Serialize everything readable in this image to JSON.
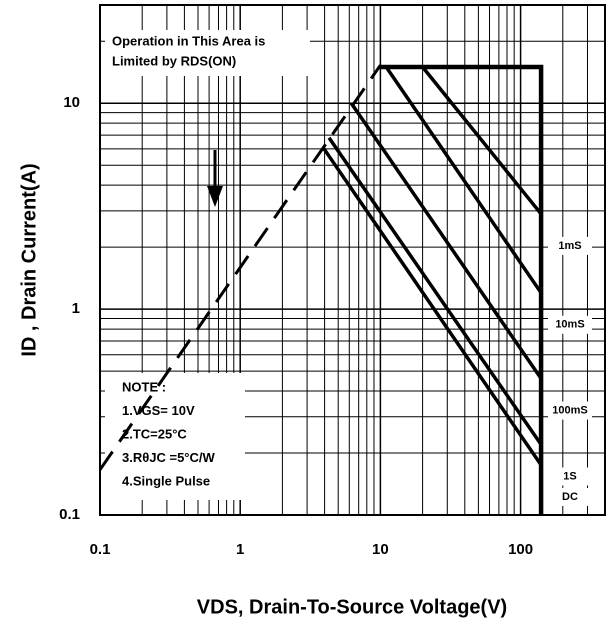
{
  "chart_data": {
    "type": "line",
    "xlabel": "VDS, Drain-To-Source Voltage(V)",
    "ylabel": "ID , Drain Current(A)",
    "log_x": true,
    "log_y": true,
    "grid": true,
    "minor_grid": true,
    "color": "#000000",
    "xlim": [
      0.1,
      400
    ],
    "ylim": [
      0.1,
      30
    ],
    "xticks": [
      0.1,
      1,
      10,
      100
    ],
    "yticks": [
      0.1,
      1,
      10
    ],
    "series": [
      {
        "name": "1mS",
        "x": [
          20,
          140
        ],
        "values": [
          15,
          2.9
        ]
      },
      {
        "name": "10mS",
        "x": [
          11,
          140
        ],
        "values": [
          15,
          1.2
        ]
      },
      {
        "name": "100mS",
        "x": [
          6.2,
          140
        ],
        "values": [
          10,
          0.46
        ]
      },
      {
        "name": "1S",
        "x": [
          4.3,
          140
        ],
        "values": [
          6.8,
          0.22
        ]
      },
      {
        "name": "DC",
        "x": [
          3.9,
          140
        ],
        "values": [
          6.1,
          0.175
        ]
      }
    ],
    "boundaries": [
      {
        "x": [
          0.1,
          10
        ],
        "values": [
          0.166,
          15.3
        ],
        "dashed": true
      },
      {
        "x": [
          10,
          140,
          140
        ],
        "values": [
          15,
          15,
          0.1
        ],
        "dashed": false
      }
    ],
    "annotations": {
      "rds": [
        "Operation in This Area is",
        "Limited by RDS(ON)"
      ],
      "note": [
        "NOTE :",
        "1.VGS= 10V",
        "2.TC=25°C",
        "3.RθJC =5°C/W",
        "4.Single Pulse"
      ]
    }
  }
}
